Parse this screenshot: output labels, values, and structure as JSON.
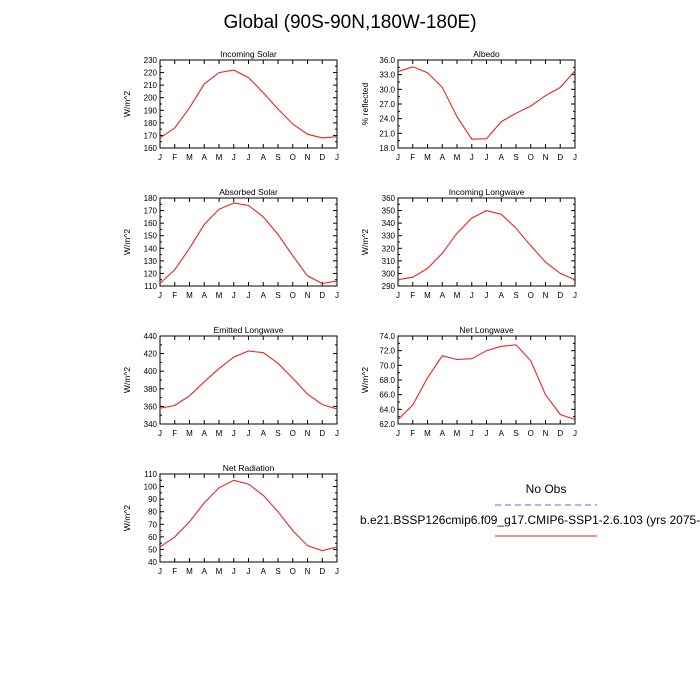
{
  "figure": {
    "title": "Global (90S-90N,180W-180E)"
  },
  "months": [
    "J",
    "F",
    "M",
    "A",
    "M",
    "J",
    "J",
    "A",
    "S",
    "O",
    "N",
    "D",
    "J"
  ],
  "legend": {
    "title": "No Obs",
    "obs_color": "#6666ee",
    "case_color": "#ee2222",
    "case_label": "b.e21.BSSP126cmip6.f09_g17.CMIP6-SSP1-2.6.103 (yrs 2075-"
  },
  "chart_data": [
    {
      "type": "line",
      "title": "Incoming Solar",
      "ylabel": "W/m^2",
      "ylim": [
        160,
        230
      ],
      "yticks": [
        160,
        170,
        180,
        190,
        200,
        210,
        220,
        230
      ],
      "tick_decimals": 0,
      "values": [
        168,
        176,
        192,
        211,
        220,
        222,
        216,
        204,
        191,
        179,
        171,
        168,
        169
      ]
    },
    {
      "type": "line",
      "title": "Albedo",
      "ylabel": "% reflected",
      "ylim": [
        18,
        36
      ],
      "yticks": [
        18,
        21,
        24,
        27,
        30,
        33,
        36
      ],
      "tick_decimals": 1,
      "values": [
        33.6,
        34.6,
        33.4,
        30.4,
        24.4,
        19.8,
        19.9,
        23.4,
        25.1,
        26.6,
        28.7,
        30.4,
        33.8
      ]
    },
    {
      "type": "line",
      "title": "Absorbed Solar",
      "ylabel": "W/m^2",
      "ylim": [
        110,
        180
      ],
      "yticks": [
        110,
        120,
        130,
        140,
        150,
        160,
        170,
        180
      ],
      "tick_decimals": 0,
      "values": [
        112,
        123,
        140,
        159,
        171,
        176,
        174,
        165,
        151,
        134,
        118,
        112,
        114
      ]
    },
    {
      "type": "line",
      "title": "Incoming Longwave",
      "ylabel": "W/m^2",
      "ylim": [
        290,
        360
      ],
      "yticks": [
        290,
        300,
        310,
        320,
        330,
        340,
        350,
        360
      ],
      "tick_decimals": 0,
      "values": [
        295,
        297,
        304,
        316,
        332,
        344,
        350,
        347,
        336,
        322,
        309,
        300,
        295
      ]
    },
    {
      "type": "line",
      "title": "Emitted Longwave",
      "ylabel": "W/m^2",
      "ylim": [
        340,
        440
      ],
      "yticks": [
        340,
        360,
        380,
        400,
        420,
        440
      ],
      "tick_decimals": 0,
      "values": [
        358,
        361,
        372,
        388,
        403,
        416,
        423,
        421,
        409,
        392,
        374,
        362,
        357
      ]
    },
    {
      "type": "line",
      "title": "Net Longwave",
      "ylabel": "W/m^2",
      "ylim": [
        62,
        74
      ],
      "yticks": [
        62,
        64,
        66,
        68,
        70,
        72,
        74
      ],
      "tick_decimals": 1,
      "values": [
        62.6,
        64.6,
        68.3,
        71.3,
        70.8,
        70.9,
        72.0,
        72.6,
        72.8,
        70.6,
        66.0,
        63.3,
        62.6
      ]
    },
    {
      "type": "line",
      "title": "Net Radiation",
      "ylabel": "W/m^2",
      "ylim": [
        40,
        110
      ],
      "yticks": [
        40,
        50,
        60,
        70,
        80,
        90,
        100,
        110
      ],
      "tick_decimals": 0,
      "values": [
        52,
        60,
        72,
        87,
        99,
        105,
        102,
        93,
        80,
        65,
        53,
        49,
        52
      ]
    }
  ]
}
